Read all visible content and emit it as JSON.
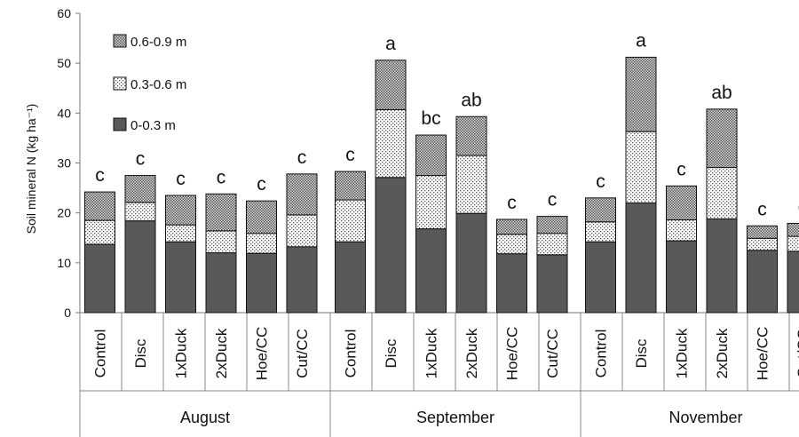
{
  "chart_data": {
    "type": "bar",
    "stacked": true,
    "ylabel": "Soil mineral N (kg ha⁻¹)",
    "ylim": [
      0,
      60
    ],
    "yticks": [
      0,
      10,
      20,
      30,
      40,
      50,
      60
    ],
    "grid": false,
    "legend_position": "top-left",
    "series": [
      {
        "name": "0-0.3 m",
        "fill": "#595959"
      },
      {
        "name": "0.3-0.6 m",
        "fill": "dots"
      },
      {
        "name": "0.6-0.9 m",
        "fill": "crosshatch"
      }
    ],
    "groups": [
      {
        "name": "August",
        "categories": [
          "Control",
          "Disc",
          "1xDuck",
          "2xDuck",
          "Hoe/CC",
          "Cut/CC"
        ],
        "layers": [
          [
            13.7,
            18.4,
            14.2,
            12.0,
            11.9,
            13.2
          ],
          [
            4.8,
            3.7,
            3.4,
            4.4,
            4.0,
            6.4
          ],
          [
            5.7,
            5.4,
            5.9,
            7.4,
            6.5,
            8.2
          ]
        ],
        "significance": [
          "c",
          "c",
          "c",
          "c",
          "c",
          "c"
        ]
      },
      {
        "name": "September",
        "categories": [
          "Control",
          "Disc",
          "1xDuck",
          "2xDuck",
          "Hoe/CC",
          "Cut/CC"
        ],
        "layers": [
          [
            14.2,
            27.1,
            16.8,
            19.9,
            11.8,
            11.6
          ],
          [
            8.4,
            13.6,
            10.7,
            11.6,
            3.9,
            4.3
          ],
          [
            5.7,
            9.9,
            8.1,
            7.8,
            3.0,
            3.4
          ]
        ],
        "significance": [
          "c",
          "a",
          "bc",
          "ab",
          "c",
          "c"
        ]
      },
      {
        "name": "November",
        "categories": [
          "Control",
          "Disc",
          "1xDuck",
          "2xDuck",
          "Hoe/CC",
          "Cut/CC"
        ],
        "layers": [
          [
            14.2,
            22.0,
            14.4,
            18.8,
            12.5,
            12.3
          ],
          [
            4.0,
            14.3,
            4.2,
            10.3,
            2.4,
            3.0
          ],
          [
            4.8,
            14.9,
            6.8,
            11.7,
            2.5,
            2.6
          ]
        ],
        "significance": [
          "c",
          "a",
          "c",
          "ab",
          "c",
          "c"
        ]
      }
    ]
  }
}
